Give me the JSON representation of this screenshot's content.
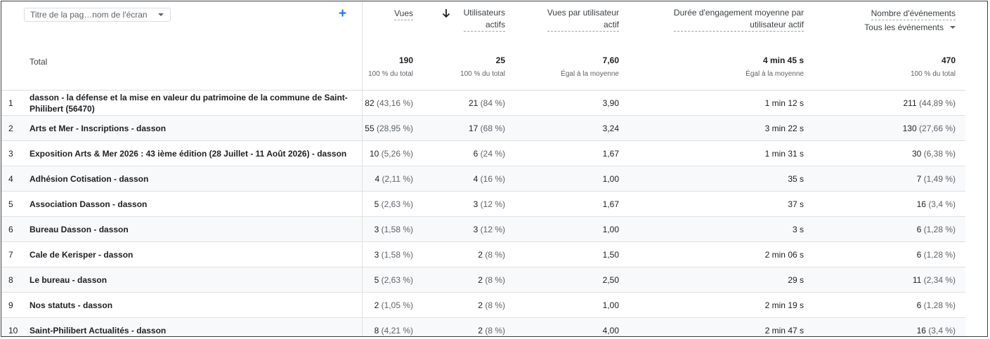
{
  "dimension_selector": {
    "label": "Titre de la pag…nom de l'écran"
  },
  "columns": {
    "views": "Vues",
    "active_users": [
      "Utilisateurs",
      "actifs"
    ],
    "views_per_user": [
      "Vues par utilisateur",
      "actif"
    ],
    "avg_engagement": [
      "Durée d'engagement moyenne par",
      "utilisateur actif"
    ],
    "event_count": "Nombre d'événements",
    "event_filter": "Tous les événements"
  },
  "totals": {
    "label": "Total",
    "views": "190",
    "views_sub": "100 % du total",
    "users": "25",
    "users_sub": "100 % du total",
    "vpu": "7,60",
    "vpu_sub": "Égal à la moyenne",
    "eng": "4 min 45 s",
    "eng_sub": "Égal à la moyenne",
    "events": "470",
    "events_sub": "100 % du total"
  },
  "rows": [
    {
      "idx": "1",
      "title": "dasson - la défense et la mise en valeur du patrimoine de la commune de Saint-Philibert (56470)",
      "views": "82",
      "views_pct": "(43,16 %)",
      "users": "21",
      "users_pct": "(84 %)",
      "vpu": "3,90",
      "eng": "1 min 12 s",
      "events": "211",
      "events_pct": "(44,89 %)"
    },
    {
      "idx": "2",
      "title": "Arts et Mer - Inscriptions - dasson",
      "views": "55",
      "views_pct": "(28,95 %)",
      "users": "17",
      "users_pct": "(68 %)",
      "vpu": "3,24",
      "eng": "3 min 22 s",
      "events": "130",
      "events_pct": "(27,66 %)"
    },
    {
      "idx": "3",
      "title": "Exposition Arts & Mer 2026 : 43 ième édition (28 Juillet - 11 Août 2026) - dasson",
      "views": "10",
      "views_pct": "(5,26 %)",
      "users": "6",
      "users_pct": "(24 %)",
      "vpu": "1,67",
      "eng": "1 min 31 s",
      "events": "30",
      "events_pct": "(6,38 %)"
    },
    {
      "idx": "4",
      "title": "Adhésion Cotisation - dasson",
      "views": "4",
      "views_pct": "(2,11 %)",
      "users": "4",
      "users_pct": "(16 %)",
      "vpu": "1,00",
      "eng": "35 s",
      "events": "7",
      "events_pct": "(1,49 %)"
    },
    {
      "idx": "5",
      "title": "Association Dasson - dasson",
      "views": "5",
      "views_pct": "(2,63 %)",
      "users": "3",
      "users_pct": "(12 %)",
      "vpu": "1,67",
      "eng": "37 s",
      "events": "16",
      "events_pct": "(3,4 %)"
    },
    {
      "idx": "6",
      "title": "Bureau Dasson - dasson",
      "views": "3",
      "views_pct": "(1,58 %)",
      "users": "3",
      "users_pct": "(12 %)",
      "vpu": "1,00",
      "eng": "3 s",
      "events": "6",
      "events_pct": "(1,28 %)"
    },
    {
      "idx": "7",
      "title": "Cale de Kerisper - dasson",
      "views": "3",
      "views_pct": "(1,58 %)",
      "users": "2",
      "users_pct": "(8 %)",
      "vpu": "1,50",
      "eng": "2 min 06 s",
      "events": "6",
      "events_pct": "(1,28 %)"
    },
    {
      "idx": "8",
      "title": "Le bureau - dasson",
      "views": "5",
      "views_pct": "(2,63 %)",
      "users": "2",
      "users_pct": "(8 %)",
      "vpu": "2,50",
      "eng": "29 s",
      "events": "11",
      "events_pct": "(2,34 %)"
    },
    {
      "idx": "9",
      "title": "Nos statuts - dasson",
      "views": "2",
      "views_pct": "(1,05 %)",
      "users": "2",
      "users_pct": "(8 %)",
      "vpu": "1,00",
      "eng": "2 min 19 s",
      "events": "6",
      "events_pct": "(1,28 %)"
    },
    {
      "idx": "10",
      "title": "Saint-Philibert Actualités - dasson",
      "views": "8",
      "views_pct": "(4,21 %)",
      "users": "2",
      "users_pct": "(8 %)",
      "vpu": "4,00",
      "eng": "2 min 47 s",
      "events": "16",
      "events_pct": "(3,4 %)"
    }
  ],
  "icons": {
    "add": "plus-icon",
    "sort": "arrow-down-icon",
    "dropdown": "chevron-down-icon"
  },
  "colors": {
    "accent": "#1a73e8",
    "row_stripe": "#f8f9fa"
  }
}
